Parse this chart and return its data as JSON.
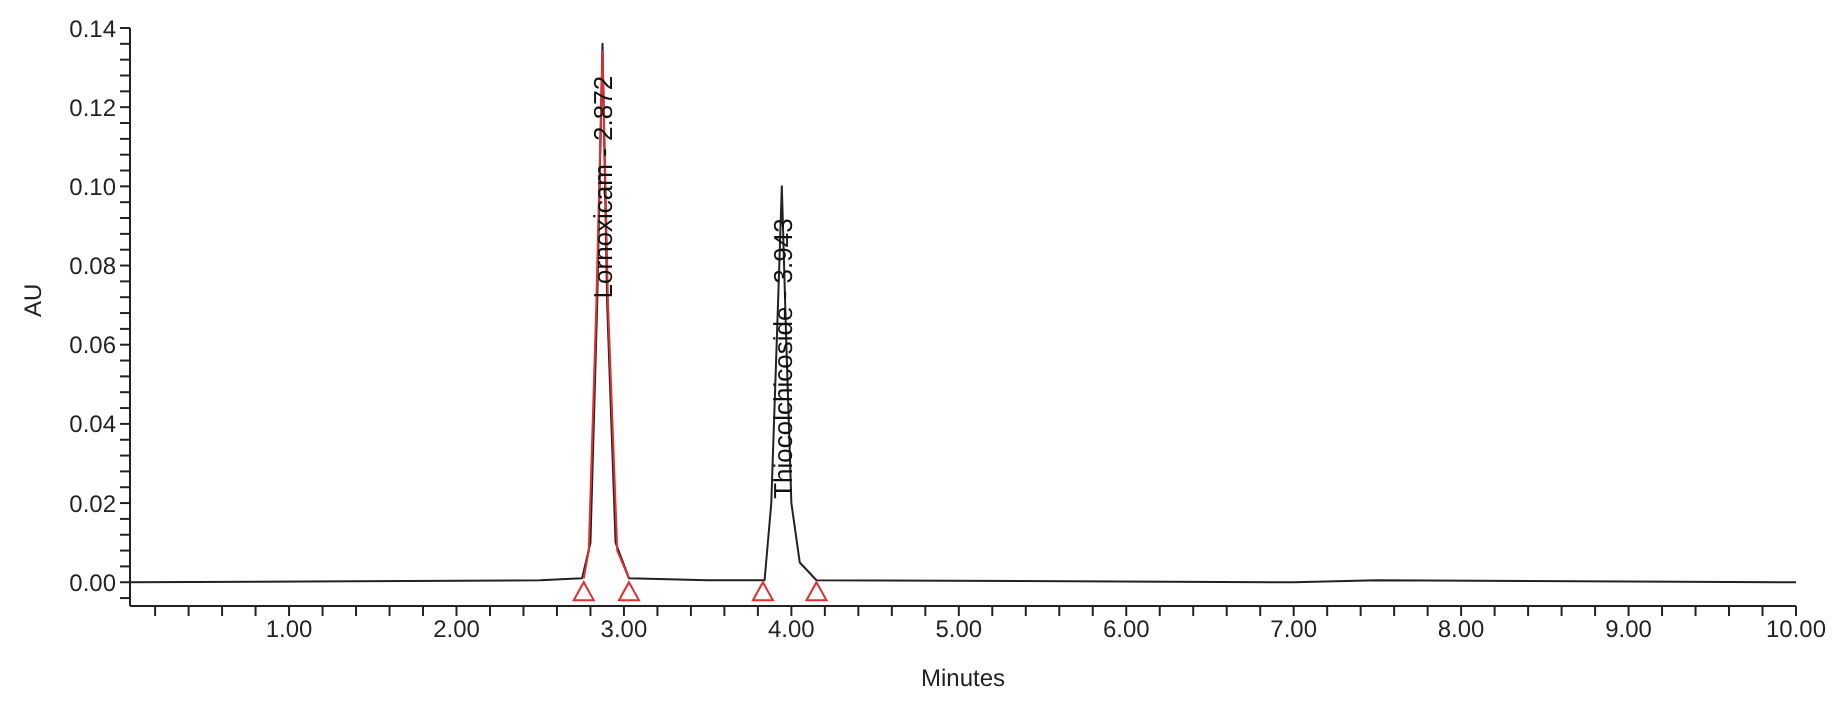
{
  "chart_data": {
    "type": "line",
    "xlabel": "Minutes",
    "ylabel": "AU",
    "xlim": [
      0.05,
      10.0
    ],
    "ylim": [
      -0.006,
      0.14
    ],
    "xticks": [
      {
        "value": 0.2,
        "label": null
      },
      {
        "value": 0.4,
        "label": null
      },
      {
        "value": 0.6,
        "label": null
      },
      {
        "value": 0.8,
        "label": null
      },
      {
        "value": 1,
        "label": "1.00"
      },
      {
        "value": 1.2,
        "label": null
      },
      {
        "value": 1.4,
        "label": null
      },
      {
        "value": 1.6,
        "label": null
      },
      {
        "value": 1.8,
        "label": null
      },
      {
        "value": 2,
        "label": "2.00"
      },
      {
        "value": 2.2,
        "label": null
      },
      {
        "value": 2.4,
        "label": null
      },
      {
        "value": 2.6,
        "label": null
      },
      {
        "value": 2.8,
        "label": null
      },
      {
        "value": 3,
        "label": "3.00"
      },
      {
        "value": 3.2,
        "label": null
      },
      {
        "value": 3.4,
        "label": null
      },
      {
        "value": 3.6,
        "label": null
      },
      {
        "value": 3.8,
        "label": null
      },
      {
        "value": 4,
        "label": "4.00"
      },
      {
        "value": 4.2,
        "label": null
      },
      {
        "value": 4.4,
        "label": null
      },
      {
        "value": 4.6,
        "label": null
      },
      {
        "value": 4.8,
        "label": null
      },
      {
        "value": 5,
        "label": "5.00"
      },
      {
        "value": 5.2,
        "label": null
      },
      {
        "value": 5.4,
        "label": null
      },
      {
        "value": 5.6,
        "label": null
      },
      {
        "value": 5.8,
        "label": null
      },
      {
        "value": 6,
        "label": "6.00"
      },
      {
        "value": 6.2,
        "label": null
      },
      {
        "value": 6.4,
        "label": null
      },
      {
        "value": 6.6,
        "label": null
      },
      {
        "value": 6.8,
        "label": null
      },
      {
        "value": 7,
        "label": "7.00"
      },
      {
        "value": 7.2,
        "label": null
      },
      {
        "value": 7.4,
        "label": null
      },
      {
        "value": 7.6,
        "label": null
      },
      {
        "value": 7.8,
        "label": null
      },
      {
        "value": 8,
        "label": "8.00"
      },
      {
        "value": 8.2,
        "label": null
      },
      {
        "value": 8.4,
        "label": null
      },
      {
        "value": 8.6,
        "label": null
      },
      {
        "value": 8.8,
        "label": null
      },
      {
        "value": 9,
        "label": "9.00"
      },
      {
        "value": 9.2,
        "label": null
      },
      {
        "value": 9.4,
        "label": null
      },
      {
        "value": 9.6,
        "label": null
      },
      {
        "value": 9.8,
        "label": null
      },
      {
        "value": 10,
        "label": "10.00"
      }
    ],
    "yticks": [
      {
        "value": -0.004,
        "label": null
      },
      {
        "value": 0,
        "label": "0.00"
      },
      {
        "value": 0.004,
        "label": null
      },
      {
        "value": 0.008,
        "label": null
      },
      {
        "value": 0.012,
        "label": null
      },
      {
        "value": 0.016,
        "label": null
      },
      {
        "value": 0.02,
        "label": "0.02"
      },
      {
        "value": 0.024,
        "label": null
      },
      {
        "value": 0.028,
        "label": null
      },
      {
        "value": 0.032,
        "label": null
      },
      {
        "value": 0.036,
        "label": null
      },
      {
        "value": 0.04,
        "label": "0.04"
      },
      {
        "value": 0.044,
        "label": null
      },
      {
        "value": 0.048,
        "label": null
      },
      {
        "value": 0.052,
        "label": null
      },
      {
        "value": 0.056,
        "label": null
      },
      {
        "value": 0.06,
        "label": "0.06"
      },
      {
        "value": 0.064,
        "label": null
      },
      {
        "value": 0.068,
        "label": null
      },
      {
        "value": 0.072,
        "label": null
      },
      {
        "value": 0.076,
        "label": null
      },
      {
        "value": 0.08,
        "label": "0.08"
      },
      {
        "value": 0.084,
        "label": null
      },
      {
        "value": 0.088,
        "label": null
      },
      {
        "value": 0.092,
        "label": null
      },
      {
        "value": 0.096,
        "label": null
      },
      {
        "value": 0.1,
        "label": "0.10"
      },
      {
        "value": 0.104,
        "label": null
      },
      {
        "value": 0.108,
        "label": null
      },
      {
        "value": 0.112,
        "label": null
      },
      {
        "value": 0.116,
        "label": null
      },
      {
        "value": 0.12,
        "label": "0.12"
      },
      {
        "value": 0.124,
        "label": null
      },
      {
        "value": 0.128,
        "label": null
      },
      {
        "value": 0.132,
        "label": null
      },
      {
        "value": 0.136,
        "label": null
      },
      {
        "value": 0.14,
        "label": "0.14"
      }
    ],
    "grid": false,
    "line_style": "solid",
    "marker": "none",
    "series": [
      {
        "color": "#222222",
        "x": [
          0.05,
          2.5,
          2.75,
          2.8,
          2.84,
          2.872,
          2.9,
          2.95,
          3.03,
          3.5,
          3.84,
          3.88,
          3.92,
          3.943,
          3.97,
          4.0,
          4.05,
          4.15,
          7.0,
          7.5,
          10.0
        ],
        "values": [
          0,
          0.0005,
          0.001,
          0.01,
          0.07,
          0.136,
          0.07,
          0.01,
          0.001,
          0.0005,
          0.0005,
          0.02,
          0.07,
          0.1,
          0.06,
          0.02,
          0.005,
          0.0005,
          0,
          0.0005,
          0
        ]
      },
      {
        "color": "#e03030",
        "x": [
          2.76,
          2.79,
          2.835,
          2.872,
          2.905,
          2.96,
          3.03
        ],
        "values": [
          0.001,
          0.008,
          0.07,
          0.134,
          0.07,
          0.008,
          0.001
        ]
      },
      {
        "type": "scatter",
        "marker": "triangle",
        "color": "#e03030",
        "x": [
          2.76,
          3.03,
          3.83,
          4.15
        ],
        "values": [
          -0.0025,
          -0.0025,
          -0.0025,
          -0.0025
        ]
      }
    ],
    "annotations": [
      {
        "text": "Lornoxicam - 2.872",
        "x": 2.872,
        "y": 0.136
      },
      {
        "text": "Thiocolchicoside - 3.943",
        "x": 3.943,
        "y": 0.1
      }
    ]
  }
}
